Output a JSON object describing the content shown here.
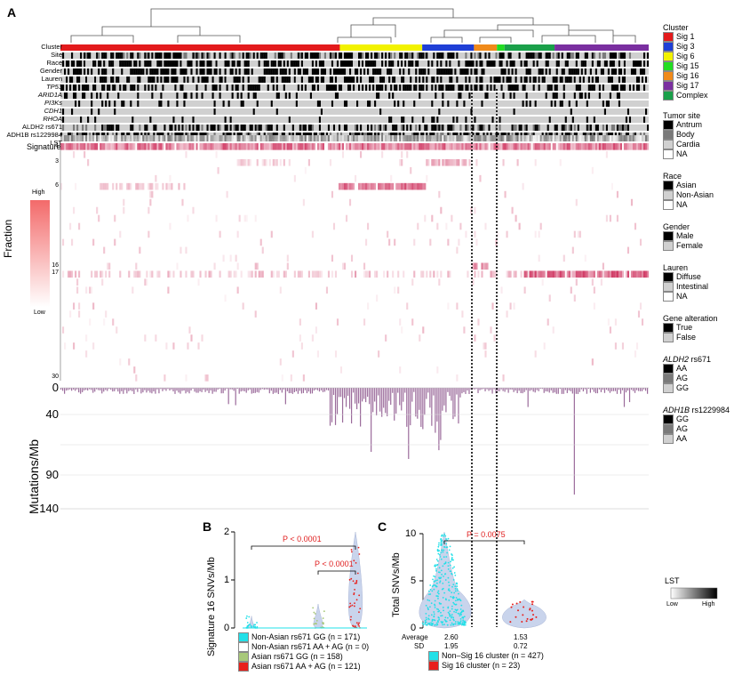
{
  "panel_labels": {
    "a": "A",
    "b": "B",
    "c": "C"
  },
  "tracks": [
    "Cluster",
    "Site",
    "Race",
    "Gender",
    "Lauren",
    "TP53",
    "ARID1A",
    "PI3Ks",
    "CDH1",
    "RHOA",
    "ALDH2 rs671",
    "ADH1B rs1229984",
    "LST"
  ],
  "italic_tracks": [
    "TP53",
    "ARID1A",
    "PI3Ks",
    "CDH1",
    "RHOA"
  ],
  "signature_label": "Signature",
  "signature_ticks": [
    "1",
    "3",
    "6",
    "16",
    "17",
    "30"
  ],
  "fraction_scale": {
    "title": "Fraction",
    "high": "High",
    "low": "Low"
  },
  "mutations_axis": {
    "title": "Mutations/Mb",
    "ticks": [
      "0",
      "40",
      "90",
      "140"
    ]
  },
  "cluster_colors": {
    "sig1": "#e31a1c",
    "sig3": "#1f3fd6",
    "sig6": "#f2f200",
    "sig15": "#22dd22",
    "sig16": "#f08a1a",
    "sig17": "#7a2fa0",
    "complex": "#1aa04a"
  },
  "legends": {
    "cluster": {
      "title": "Cluster",
      "items": [
        {
          "label": "Sig 1",
          "color": "#e31a1c"
        },
        {
          "label": "Sig 3",
          "color": "#1f3fd6"
        },
        {
          "label": "Sig 6",
          "color": "#f2f200"
        },
        {
          "label": "Sig 15",
          "color": "#22dd22"
        },
        {
          "label": "Sig 16",
          "color": "#f08a1a"
        },
        {
          "label": "Sig 17",
          "color": "#7a2fa0"
        },
        {
          "label": "Complex",
          "color": "#1aa04a"
        }
      ]
    },
    "site": {
      "title": "Tumor site",
      "items": [
        {
          "label": "Antrum",
          "color": "#000000"
        },
        {
          "label": "Body",
          "color": "#7a7a7a"
        },
        {
          "label": "Cardia",
          "color": "#d0d0d0"
        },
        {
          "label": "NA",
          "color": "#ffffff"
        }
      ]
    },
    "race": {
      "title": "Race",
      "items": [
        {
          "label": "Asian",
          "color": "#000000"
        },
        {
          "label": "Non-Asian",
          "color": "#d0d0d0"
        },
        {
          "label": "NA",
          "color": "#ffffff"
        }
      ]
    },
    "gender": {
      "title": "Gender",
      "items": [
        {
          "label": "Male",
          "color": "#000000"
        },
        {
          "label": "Female",
          "color": "#d0d0d0"
        }
      ]
    },
    "lauren": {
      "title": "Lauren",
      "items": [
        {
          "label": "Diffuse",
          "color": "#000000"
        },
        {
          "label": "Intestinal",
          "color": "#d0d0d0"
        },
        {
          "label": "NA",
          "color": "#ffffff"
        }
      ]
    },
    "alteration": {
      "title": "Gene alteration",
      "items": [
        {
          "label": "True",
          "color": "#000000"
        },
        {
          "label": "False",
          "color": "#d0d0d0"
        }
      ]
    },
    "aldh2": {
      "title_italic": "ALDH2",
      "title_rest": " rs671",
      "items": [
        {
          "label": "AA",
          "color": "#000000"
        },
        {
          "label": "AG",
          "color": "#7a7a7a"
        },
        {
          "label": "GG",
          "color": "#d0d0d0"
        }
      ]
    },
    "adh1b": {
      "title_italic": "ADH1B",
      "title_rest": " rs1229984",
      "items": [
        {
          "label": "GG",
          "color": "#000000"
        },
        {
          "label": "AG",
          "color": "#7a7a7a"
        },
        {
          "label": "AA",
          "color": "#d0d0d0"
        }
      ]
    },
    "lst": {
      "title": "LST",
      "low": "Low",
      "high": "High"
    }
  },
  "chart_data": [
    {
      "type": "violin",
      "panel": "B",
      "ylabel": "Signature 16 SNVs/Mb",
      "ylim": [
        0,
        2
      ],
      "yticks": [
        "0",
        "1",
        "2"
      ],
      "series": [
        {
          "name": "Non-Asian rs671 GG",
          "n": "171",
          "color": "#22e0e8"
        },
        {
          "name": "Non-Asian rs671 AA + AG",
          "n": "0",
          "color": "#ffffff"
        },
        {
          "name": "Asian rs671 GG",
          "n": "158",
          "color": "#a8c87a"
        },
        {
          "name": "Asian rs671 AA + AG",
          "n": "121",
          "color": "#e8201c"
        }
      ],
      "legend_text": [
        "Non-Asian rs671 GG (n = 171)",
        "Non-Asian rs671 AA + AG (n = 0)",
        "Asian rs671 GG (n = 158)",
        "Asian rs671 AA + AG (n = 121)"
      ],
      "annotations": [
        {
          "text": "P < 0.0001",
          "between": [
            "Non-Asian rs671 GG",
            "Asian rs671 AA + AG"
          ]
        },
        {
          "text": "P < 0.0001",
          "between": [
            "Asian rs671 GG",
            "Asian rs671 AA + AG"
          ]
        }
      ]
    },
    {
      "type": "violin",
      "panel": "C",
      "ylabel": "Total SNVs/Mb",
      "ylim": [
        0,
        10
      ],
      "yticks": [
        "0",
        "5",
        "10"
      ],
      "series": [
        {
          "name": "Non–Sig 16 cluster",
          "n": "427",
          "color": "#22e0e8",
          "average": "2.60",
          "sd": "1.95"
        },
        {
          "name": "Sig 16 cluster",
          "n": "23",
          "color": "#e8201c",
          "average": "1.53",
          "sd": "0.72"
        }
      ],
      "legend_text": [
        "Non–Sig 16 cluster (n = 427)",
        "Sig 16 cluster (n = 23)"
      ],
      "row_labels": {
        "average": "Average",
        "sd": "SD"
      },
      "annotations": [
        {
          "text": "P = 0.0075",
          "between": [
            "Non–Sig 16 cluster",
            "Sig 16 cluster"
          ]
        }
      ]
    }
  ]
}
